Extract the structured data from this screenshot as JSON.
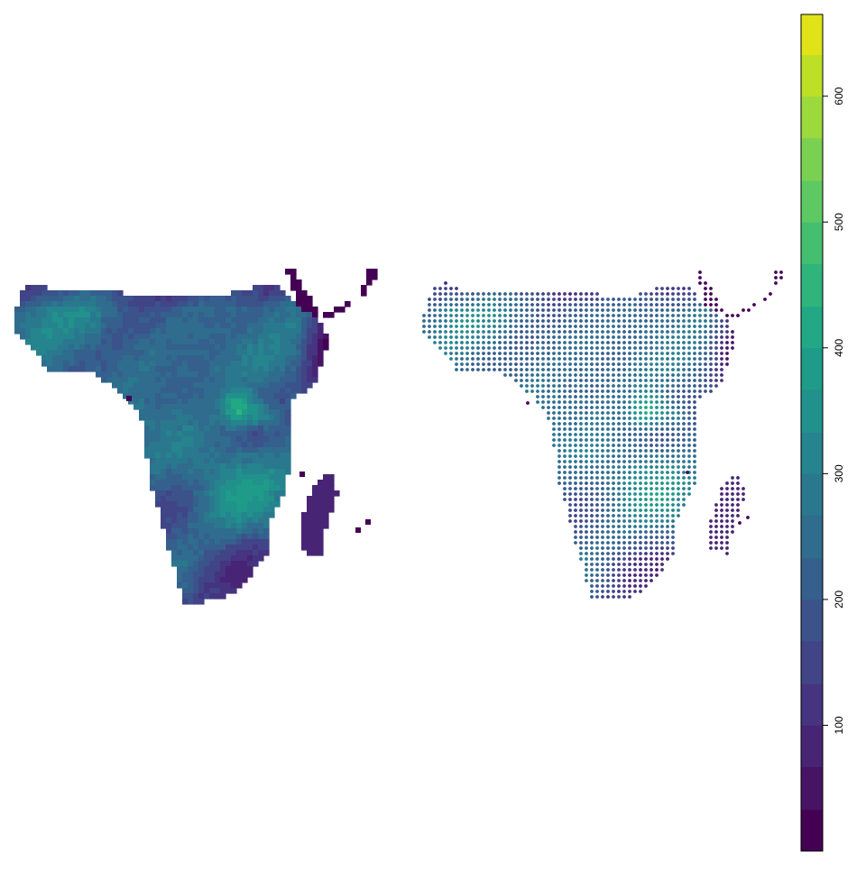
{
  "figure": {
    "panels": [
      {
        "id": "raster",
        "style": "raster-grid"
      },
      {
        "id": "points",
        "style": "point-grid"
      }
    ]
  },
  "legend": {
    "orientation": "vertical",
    "placement": "right",
    "range": [
      0,
      665
    ],
    "breaks": [
      0,
      33,
      67,
      100,
      133,
      167,
      200,
      233,
      267,
      300,
      333,
      367,
      400,
      433,
      467,
      500,
      533,
      567,
      600,
      633,
      665
    ],
    "colors": [
      "#440154",
      "#471365",
      "#482475",
      "#463480",
      "#414487",
      "#3b528b",
      "#355f8d",
      "#2f6c8e",
      "#2a788e",
      "#25848e",
      "#21918c",
      "#1e9c89",
      "#22a884",
      "#2fb47c",
      "#44bf70",
      "#5ec962",
      "#7ad151",
      "#9bd93c",
      "#bddf26",
      "#dfe318",
      "#fde725"
    ],
    "tick_labels": [
      "100",
      "200",
      "300",
      "400",
      "500",
      "600"
    ],
    "tick_values": [
      100,
      200,
      300,
      400,
      500,
      600
    ]
  }
}
